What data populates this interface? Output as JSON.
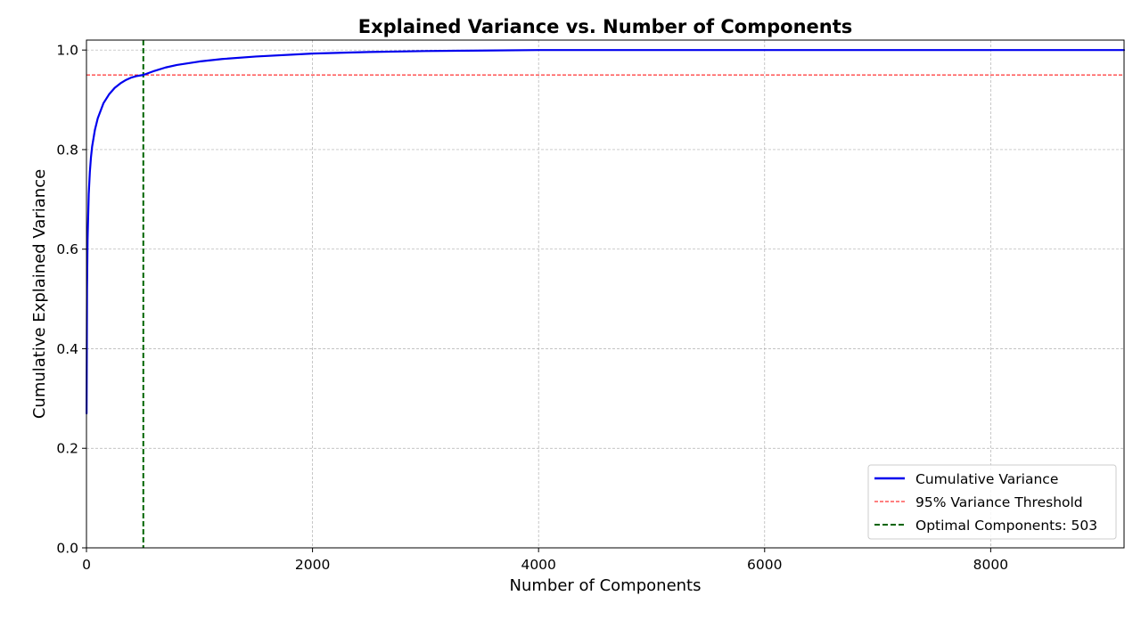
{
  "chart_data": {
    "type": "line",
    "title": "Explained Variance vs. Number of Components",
    "xlabel": "Number of Components",
    "ylabel": "Cumulative Explained Variance",
    "xlim": [
      0,
      9180
    ],
    "ylim": [
      0,
      1.02
    ],
    "xticks": [
      0,
      2000,
      4000,
      6000,
      8000
    ],
    "yticks": [
      0.0,
      0.2,
      0.4,
      0.6,
      0.8,
      1.0
    ],
    "xtick_labels": [
      "0",
      "2000",
      "4000",
      "6000",
      "8000"
    ],
    "ytick_labels": [
      "0.0",
      "0.2",
      "0.4",
      "0.6",
      "0.8",
      "1.0"
    ],
    "grid": true,
    "legend_position": "lower-right",
    "series": [
      {
        "name": "Cumulative Variance",
        "color": "#0000ee",
        "style": "solid",
        "x": [
          1,
          5,
          10,
          20,
          30,
          40,
          50,
          75,
          100,
          150,
          200,
          250,
          300,
          350,
          400,
          450,
          503,
          600,
          700,
          800,
          1000,
          1200,
          1500,
          2000,
          2500,
          3000,
          3500,
          4000,
          5000,
          6000,
          7000,
          8000,
          9000,
          9180
        ],
        "y": [
          0.27,
          0.52,
          0.62,
          0.71,
          0.755,
          0.785,
          0.806,
          0.84,
          0.863,
          0.893,
          0.911,
          0.924,
          0.933,
          0.94,
          0.945,
          0.948,
          0.95,
          0.958,
          0.965,
          0.97,
          0.977,
          0.982,
          0.987,
          0.993,
          0.996,
          0.998,
          0.999,
          1.0,
          1.0,
          1.0,
          1.0,
          1.0,
          1.0,
          1.0
        ]
      }
    ],
    "reference_lines": [
      {
        "name": "95% Variance Threshold",
        "orientation": "horizontal",
        "value": 0.95,
        "color": "#ff0000",
        "style": "dashed"
      },
      {
        "name": "Optimal Components: 503",
        "orientation": "vertical",
        "value": 503,
        "color": "#006400",
        "style": "dashed"
      }
    ]
  },
  "legend": {
    "items": [
      {
        "label": "Cumulative Variance",
        "color": "#0000ee",
        "style": "solid"
      },
      {
        "label": "95% Variance Threshold",
        "color": "#ff0000",
        "style": "dashed"
      },
      {
        "label": "Optimal Components: 503",
        "color": "#006400",
        "style": "dashed"
      }
    ]
  }
}
